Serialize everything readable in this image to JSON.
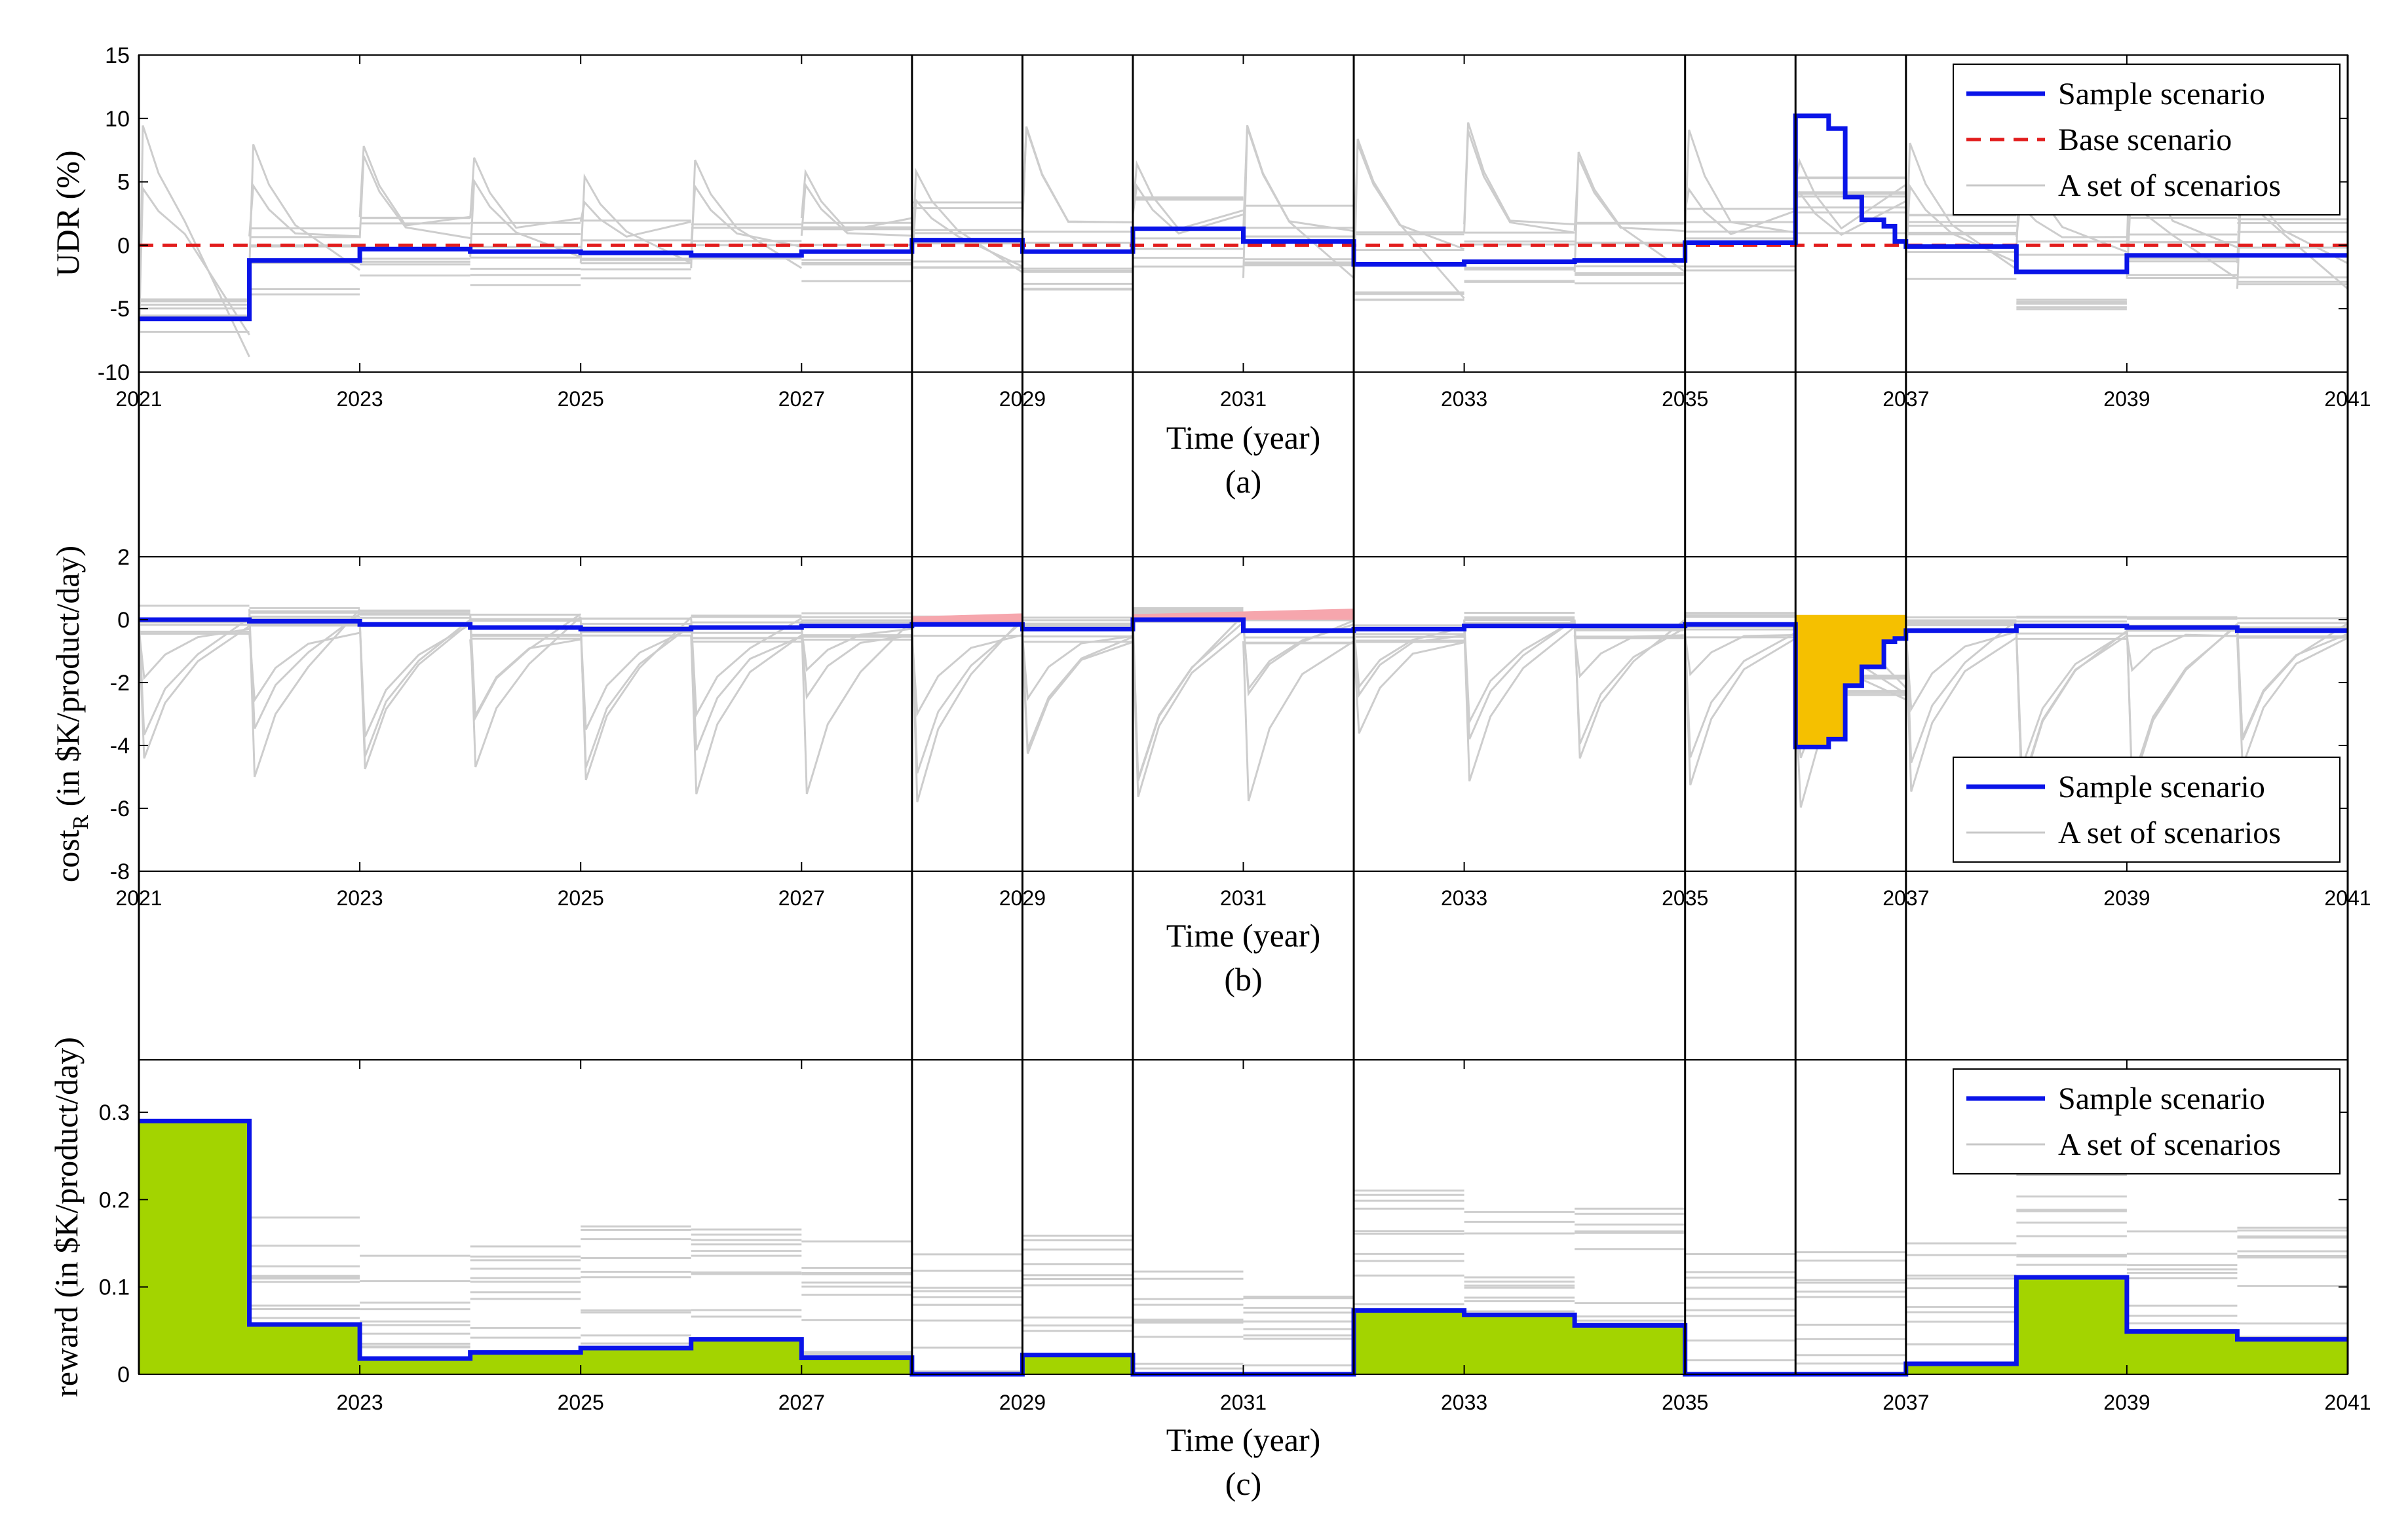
{
  "colors": {
    "sample": "#0a14e8",
    "base": "#e21d1d",
    "scenario_set": "#c8c8c8",
    "loss_fill_pink": "#f6a6ad",
    "loss_fill_orange": "#f5c000",
    "reward_fill": "#a3d400",
    "window_lines": "#000000"
  },
  "highlight_windows_year": [
    [
      2028,
      2029
    ],
    [
      2030,
      2032
    ],
    [
      2035,
      2036
    ],
    [
      2036,
      2037
    ]
  ],
  "chart_data": [
    {
      "id": "a",
      "type": "line",
      "caption": "(a)",
      "xlabel": "Time (year)",
      "ylabel": "UDR (%)",
      "xlim": [
        2021,
        2041
      ],
      "ylim": [
        -10,
        15
      ],
      "xticks": [
        "2021",
        "2023",
        "2025",
        "2027",
        "2029",
        "2031",
        "2033",
        "2035",
        "2037",
        "2039",
        "2041"
      ],
      "yticks": [
        "-10",
        "-5",
        "0",
        "5",
        "10",
        "15"
      ],
      "legend": {
        "position": "top-right",
        "entries": [
          "Sample scenario",
          "Base scenario",
          "A set of scenarios"
        ]
      },
      "series": [
        {
          "name": "Sample scenario",
          "style": "step",
          "x": [
            2021,
            2022,
            2023,
            2024,
            2025,
            2026,
            2027,
            2028,
            2029,
            2030,
            2031,
            2032,
            2033,
            2034,
            2035,
            2036,
            2036.3,
            2036.45,
            2036.6,
            2036.8,
            2036.9,
            2037,
            2038,
            2039,
            2040,
            2041
          ],
          "y": [
            -5.8,
            -1.2,
            -0.3,
            -0.5,
            -0.6,
            -0.8,
            -0.5,
            0.4,
            -0.5,
            1.3,
            0.3,
            -1.5,
            -1.3,
            -1.2,
            0.2,
            10.2,
            9.2,
            3.8,
            2.0,
            1.5,
            0.3,
            -0.1,
            -2.1,
            -0.8,
            -0.8,
            -0.8
          ]
        },
        {
          "name": "Base scenario",
          "style": "dashed",
          "x": [
            2021,
            2041
          ],
          "y": [
            0,
            0
          ]
        }
      ]
    },
    {
      "id": "b",
      "type": "line",
      "caption": "(b)",
      "xlabel": "Time (year)",
      "ylabel": "cost_R (in $K/product/day)",
      "xlim": [
        2021,
        2041
      ],
      "ylim": [
        -8,
        2
      ],
      "xticks": [
        "2021",
        "2023",
        "2025",
        "2027",
        "2029",
        "2031",
        "2033",
        "2035",
        "2037",
        "2039",
        "2041"
      ],
      "yticks": [
        "-8",
        "-6",
        "-4",
        "-2",
        "0",
        "2"
      ],
      "legend": {
        "position": "bottom-right",
        "entries": [
          "Sample scenario",
          "A set of scenarios"
        ]
      },
      "series": [
        {
          "name": "Sample scenario",
          "style": "step",
          "x": [
            2021,
            2022,
            2023,
            2024,
            2025,
            2026,
            2027,
            2028,
            2029,
            2030,
            2031,
            2032,
            2033,
            2034,
            2035,
            2036,
            2036.3,
            2036.45,
            2036.6,
            2036.8,
            2036.9,
            2037,
            2038,
            2039,
            2040,
            2041
          ],
          "y": [
            0.0,
            -0.05,
            -0.15,
            -0.25,
            -0.3,
            -0.25,
            -0.2,
            -0.15,
            -0.3,
            0.0,
            -0.35,
            -0.3,
            -0.2,
            -0.2,
            -0.15,
            -4.05,
            -3.8,
            -2.1,
            -1.5,
            -0.7,
            -0.6,
            -0.35,
            -0.2,
            -0.25,
            -0.35,
            -0.35
          ]
        }
      ]
    },
    {
      "id": "c",
      "type": "area",
      "caption": "(c)",
      "xlabel": "Time (year)",
      "ylabel": "reward (in $K/product/day)",
      "xlim": [
        2021,
        2041
      ],
      "ylim": [
        0,
        0.36
      ],
      "xticks": [
        "2023",
        "2025",
        "2027",
        "2029",
        "2031",
        "2033",
        "2035",
        "2037",
        "2039",
        "2041"
      ],
      "yticks": [
        "0",
        "0.1",
        "0.2",
        "0.3"
      ],
      "legend": {
        "position": "top-right",
        "entries": [
          "Sample scenario",
          "A set of scenarios"
        ]
      },
      "series": [
        {
          "name": "Sample scenario",
          "style": "step",
          "x": [
            2021,
            2022,
            2023,
            2024,
            2025,
            2026,
            2027,
            2028,
            2029,
            2030,
            2031,
            2032,
            2033,
            2034,
            2035,
            2036,
            2037,
            2038,
            2039,
            2040,
            2041
          ],
          "y": [
            0.29,
            0.057,
            0.018,
            0.025,
            0.03,
            0.04,
            0.019,
            0.0,
            0.022,
            0.0,
            0.0,
            0.073,
            0.068,
            0.056,
            0.0,
            0.0,
            0.012,
            0.111,
            0.049,
            0.04,
            0.04
          ]
        }
      ]
    }
  ]
}
